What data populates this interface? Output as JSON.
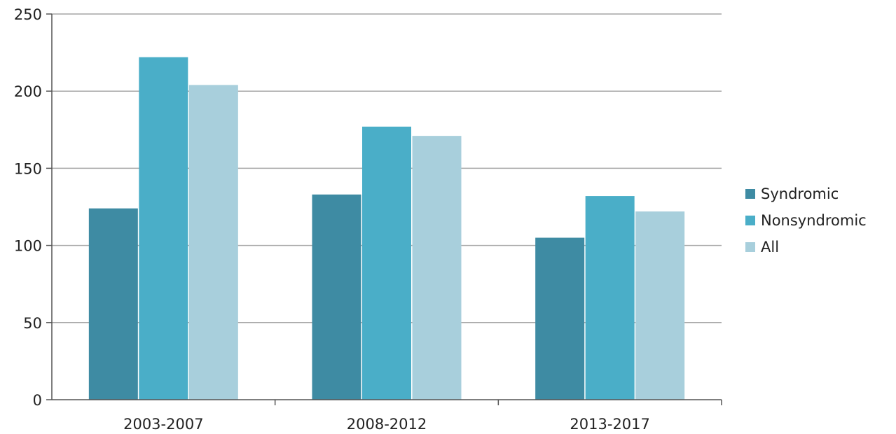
{
  "chart_data": {
    "type": "bar",
    "categories": [
      "2003-2007",
      "2008-2012",
      "2013-2017"
    ],
    "series": [
      {
        "name": "Syndromic",
        "values": [
          124,
          133,
          105
        ],
        "color": "#3e8ba3"
      },
      {
        "name": "Nonsyndromic",
        "values": [
          222,
          177,
          132
        ],
        "color": "#4aaec8"
      },
      {
        "name": "All",
        "values": [
          204,
          171,
          122
        ],
        "color": "#a8cfdc"
      }
    ],
    "ylim": [
      0,
      250
    ],
    "yticks": [
      "0",
      "50",
      "100",
      "150",
      "200",
      "250"
    ],
    "title": "",
    "xlabel": "",
    "ylabel": "",
    "grid": true,
    "legend_position": "right"
  }
}
